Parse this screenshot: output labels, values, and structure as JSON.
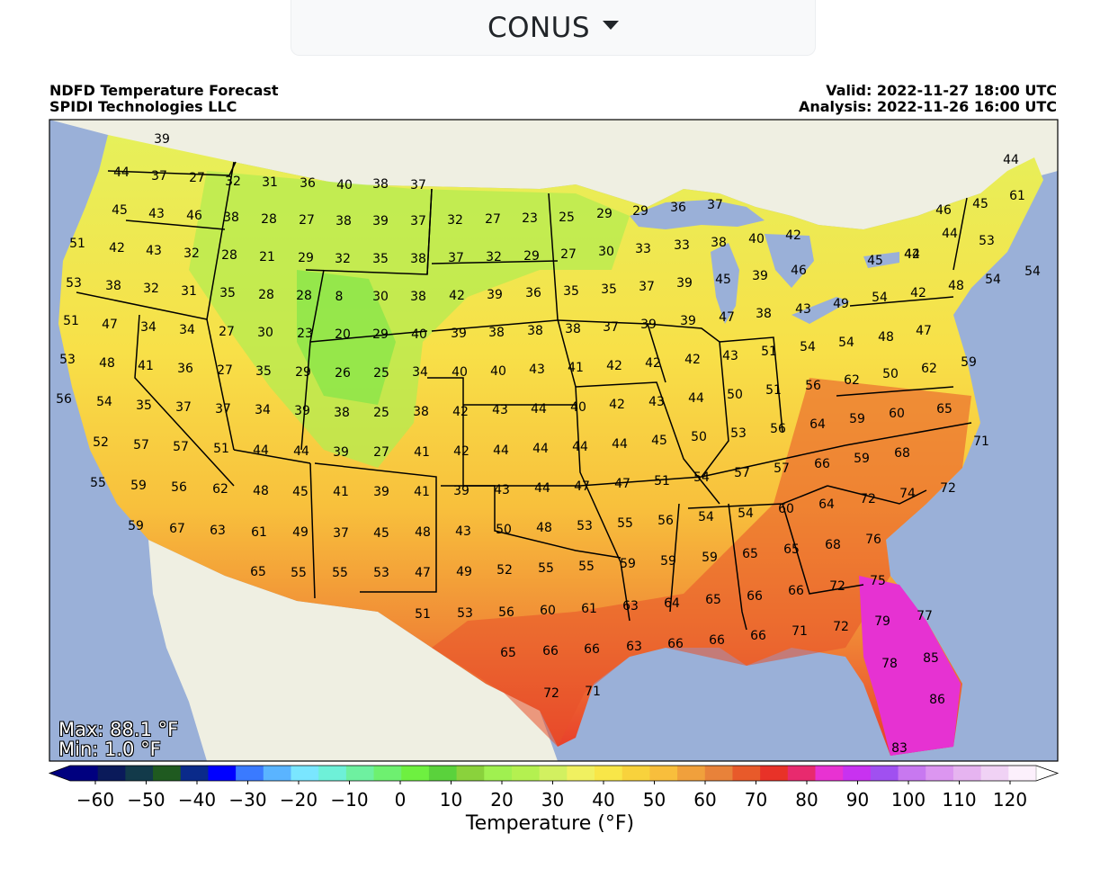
{
  "selector": {
    "region": "CONUS"
  },
  "header": {
    "title": "NDFD Temperature Forecast",
    "company": "SPIDI Technologies LLC",
    "valid": "Valid: 2022-11-27 18:00 UTC",
    "analysis": "Analysis: 2022-11-26 16:00 UTC"
  },
  "stats": {
    "max": "Max: 88.1 °F",
    "min": "Min: 1.0 °F"
  },
  "colorbar": {
    "label": "Temperature (°F)",
    "ticks": [
      "−60",
      "−50",
      "−40",
      "−30",
      "−20",
      "−10",
      "0",
      "10",
      "20",
      "30",
      "40",
      "50",
      "60",
      "70",
      "80",
      "90",
      "100",
      "110",
      "120"
    ],
    "colors": [
      "#00007f",
      "#0a1a5a",
      "#123a4a",
      "#1f5a20",
      "#0a2a8a",
      "#0000ff",
      "#3a7aff",
      "#5ab4ff",
      "#7ae6ff",
      "#6ef0d8",
      "#6ef0a0",
      "#6ef070",
      "#6ef040",
      "#5ad23c",
      "#8ad23c",
      "#a0f050",
      "#b4f050",
      "#d2f060",
      "#f0f060",
      "#f8e648",
      "#f8d23c",
      "#f8be3c",
      "#f0a03c",
      "#e8823a",
      "#e85a2a",
      "#e83228",
      "#e82a6e",
      "#e832d2",
      "#c832f0",
      "#a050f0",
      "#c878f0",
      "#dc96f0",
      "#e6b4f0",
      "#f0d2f5",
      "#fcf0fc"
    ]
  },
  "map_colors": {
    "ocean": "#9ab0d8",
    "land_outside": "#efefe2",
    "lake": "#9ab0d8"
  },
  "temperature_labels": [
    {
      "v": "39"
    },
    {
      "v": "44"
    },
    {
      "v": "37"
    },
    {
      "v": "27"
    },
    {
      "v": "32"
    },
    {
      "v": "31"
    },
    {
      "v": "36"
    },
    {
      "v": "40"
    },
    {
      "v": "38"
    },
    {
      "v": "37"
    },
    {
      "v": "44"
    },
    {
      "v": "45"
    },
    {
      "v": "43"
    },
    {
      "v": "46"
    },
    {
      "v": "38"
    },
    {
      "v": "28"
    },
    {
      "v": "27"
    },
    {
      "v": "38"
    },
    {
      "v": "39"
    },
    {
      "v": "37"
    },
    {
      "v": "32"
    },
    {
      "v": "27"
    },
    {
      "v": "23"
    },
    {
      "v": "25"
    },
    {
      "v": "29"
    },
    {
      "v": "29"
    },
    {
      "v": "36"
    },
    {
      "v": "37"
    },
    {
      "v": "46"
    },
    {
      "v": "45"
    },
    {
      "v": "61"
    },
    {
      "v": "51"
    },
    {
      "v": "42"
    },
    {
      "v": "43"
    },
    {
      "v": "32"
    },
    {
      "v": "28"
    },
    {
      "v": "21"
    },
    {
      "v": "29"
    },
    {
      "v": "32"
    },
    {
      "v": "35"
    },
    {
      "v": "38"
    },
    {
      "v": "37"
    },
    {
      "v": "32"
    },
    {
      "v": "29"
    },
    {
      "v": "27"
    },
    {
      "v": "30"
    },
    {
      "v": "33"
    },
    {
      "v": "33"
    },
    {
      "v": "38"
    },
    {
      "v": "40"
    },
    {
      "v": "42"
    },
    {
      "v": "42"
    },
    {
      "v": "53"
    },
    {
      "v": "45"
    },
    {
      "v": "44"
    },
    {
      "v": "53"
    },
    {
      "v": "38"
    },
    {
      "v": "32"
    },
    {
      "v": "31"
    },
    {
      "v": "35"
    },
    {
      "v": "28"
    },
    {
      "v": "28"
    },
    {
      "v": "8"
    },
    {
      "v": "30"
    },
    {
      "v": "38"
    },
    {
      "v": "42"
    },
    {
      "v": "39"
    },
    {
      "v": "36"
    },
    {
      "v": "35"
    },
    {
      "v": "35"
    },
    {
      "v": "37"
    },
    {
      "v": "39"
    },
    {
      "v": "45"
    },
    {
      "v": "39"
    },
    {
      "v": "46"
    },
    {
      "v": "44"
    },
    {
      "v": "42"
    },
    {
      "v": "48"
    },
    {
      "v": "54"
    },
    {
      "v": "54"
    },
    {
      "v": "51"
    },
    {
      "v": "47"
    },
    {
      "v": "34"
    },
    {
      "v": "34"
    },
    {
      "v": "27"
    },
    {
      "v": "30"
    },
    {
      "v": "23"
    },
    {
      "v": "20"
    },
    {
      "v": "29"
    },
    {
      "v": "40"
    },
    {
      "v": "39"
    },
    {
      "v": "38"
    },
    {
      "v": "38"
    },
    {
      "v": "38"
    },
    {
      "v": "37"
    },
    {
      "v": "39"
    },
    {
      "v": "39"
    },
    {
      "v": "47"
    },
    {
      "v": "38"
    },
    {
      "v": "43"
    },
    {
      "v": "49"
    },
    {
      "v": "54"
    },
    {
      "v": "53"
    },
    {
      "v": "48"
    },
    {
      "v": "41"
    },
    {
      "v": "36"
    },
    {
      "v": "27"
    },
    {
      "v": "35"
    },
    {
      "v": "29"
    },
    {
      "v": "26"
    },
    {
      "v": "25"
    },
    {
      "v": "34"
    },
    {
      "v": "40"
    },
    {
      "v": "40"
    },
    {
      "v": "43"
    },
    {
      "v": "41"
    },
    {
      "v": "42"
    },
    {
      "v": "42"
    },
    {
      "v": "42"
    },
    {
      "v": "43"
    },
    {
      "v": "51"
    },
    {
      "v": "54"
    },
    {
      "v": "54"
    },
    {
      "v": "48"
    },
    {
      "v": "47"
    },
    {
      "v": "59"
    },
    {
      "v": "56"
    },
    {
      "v": "54"
    },
    {
      "v": "35"
    },
    {
      "v": "37"
    },
    {
      "v": "37"
    },
    {
      "v": "34"
    },
    {
      "v": "39"
    },
    {
      "v": "38"
    },
    {
      "v": "25"
    },
    {
      "v": "38"
    },
    {
      "v": "42"
    },
    {
      "v": "43"
    },
    {
      "v": "44"
    },
    {
      "v": "40"
    },
    {
      "v": "42"
    },
    {
      "v": "43"
    },
    {
      "v": "44"
    },
    {
      "v": "50"
    },
    {
      "v": "51"
    },
    {
      "v": "56"
    },
    {
      "v": "62"
    },
    {
      "v": "50"
    },
    {
      "v": "62"
    },
    {
      "v": "52"
    },
    {
      "v": "57"
    },
    {
      "v": "57"
    },
    {
      "v": "51"
    },
    {
      "v": "44"
    },
    {
      "v": "44"
    },
    {
      "v": "39"
    },
    {
      "v": "27"
    },
    {
      "v": "41"
    },
    {
      "v": "42"
    },
    {
      "v": "44"
    },
    {
      "v": "44"
    },
    {
      "v": "44"
    },
    {
      "v": "44"
    },
    {
      "v": "45"
    },
    {
      "v": "50"
    },
    {
      "v": "53"
    },
    {
      "v": "56"
    },
    {
      "v": "64"
    },
    {
      "v": "59"
    },
    {
      "v": "60"
    },
    {
      "v": "65"
    },
    {
      "v": "71"
    },
    {
      "v": "55"
    },
    {
      "v": "59"
    },
    {
      "v": "56"
    },
    {
      "v": "62"
    },
    {
      "v": "48"
    },
    {
      "v": "45"
    },
    {
      "v": "41"
    },
    {
      "v": "39"
    },
    {
      "v": "41"
    },
    {
      "v": "39"
    },
    {
      "v": "43"
    },
    {
      "v": "44"
    },
    {
      "v": "47"
    },
    {
      "v": "47"
    },
    {
      "v": "51"
    },
    {
      "v": "54"
    },
    {
      "v": "57"
    },
    {
      "v": "57"
    },
    {
      "v": "66"
    },
    {
      "v": "59"
    },
    {
      "v": "68"
    },
    {
      "v": "72"
    },
    {
      "v": "59"
    },
    {
      "v": "67"
    },
    {
      "v": "63"
    },
    {
      "v": "61"
    },
    {
      "v": "49"
    },
    {
      "v": "37"
    },
    {
      "v": "45"
    },
    {
      "v": "48"
    },
    {
      "v": "43"
    },
    {
      "v": "50"
    },
    {
      "v": "48"
    },
    {
      "v": "53"
    },
    {
      "v": "55"
    },
    {
      "v": "56"
    },
    {
      "v": "54"
    },
    {
      "v": "54"
    },
    {
      "v": "60"
    },
    {
      "v": "64"
    },
    {
      "v": "72"
    },
    {
      "v": "74"
    },
    {
      "v": "65"
    },
    {
      "v": "55"
    },
    {
      "v": "55"
    },
    {
      "v": "53"
    },
    {
      "v": "47"
    },
    {
      "v": "49"
    },
    {
      "v": "52"
    },
    {
      "v": "55"
    },
    {
      "v": "55"
    },
    {
      "v": "59"
    },
    {
      "v": "59"
    },
    {
      "v": "59"
    },
    {
      "v": "65"
    },
    {
      "v": "65"
    },
    {
      "v": "68"
    },
    {
      "v": "76"
    },
    {
      "v": "51"
    },
    {
      "v": "53"
    },
    {
      "v": "56"
    },
    {
      "v": "60"
    },
    {
      "v": "61"
    },
    {
      "v": "63"
    },
    {
      "v": "64"
    },
    {
      "v": "65"
    },
    {
      "v": "66"
    },
    {
      "v": "66"
    },
    {
      "v": "72"
    },
    {
      "v": "75"
    },
    {
      "v": "65"
    },
    {
      "v": "66"
    },
    {
      "v": "66"
    },
    {
      "v": "63"
    },
    {
      "v": "66"
    },
    {
      "v": "66"
    },
    {
      "v": "66"
    },
    {
      "v": "71"
    },
    {
      "v": "72"
    },
    {
      "v": "79"
    },
    {
      "v": "77"
    },
    {
      "v": "78"
    },
    {
      "v": "85"
    },
    {
      "v": "72"
    },
    {
      "v": "71"
    },
    {
      "v": "86"
    },
    {
      "v": "83"
    }
  ]
}
